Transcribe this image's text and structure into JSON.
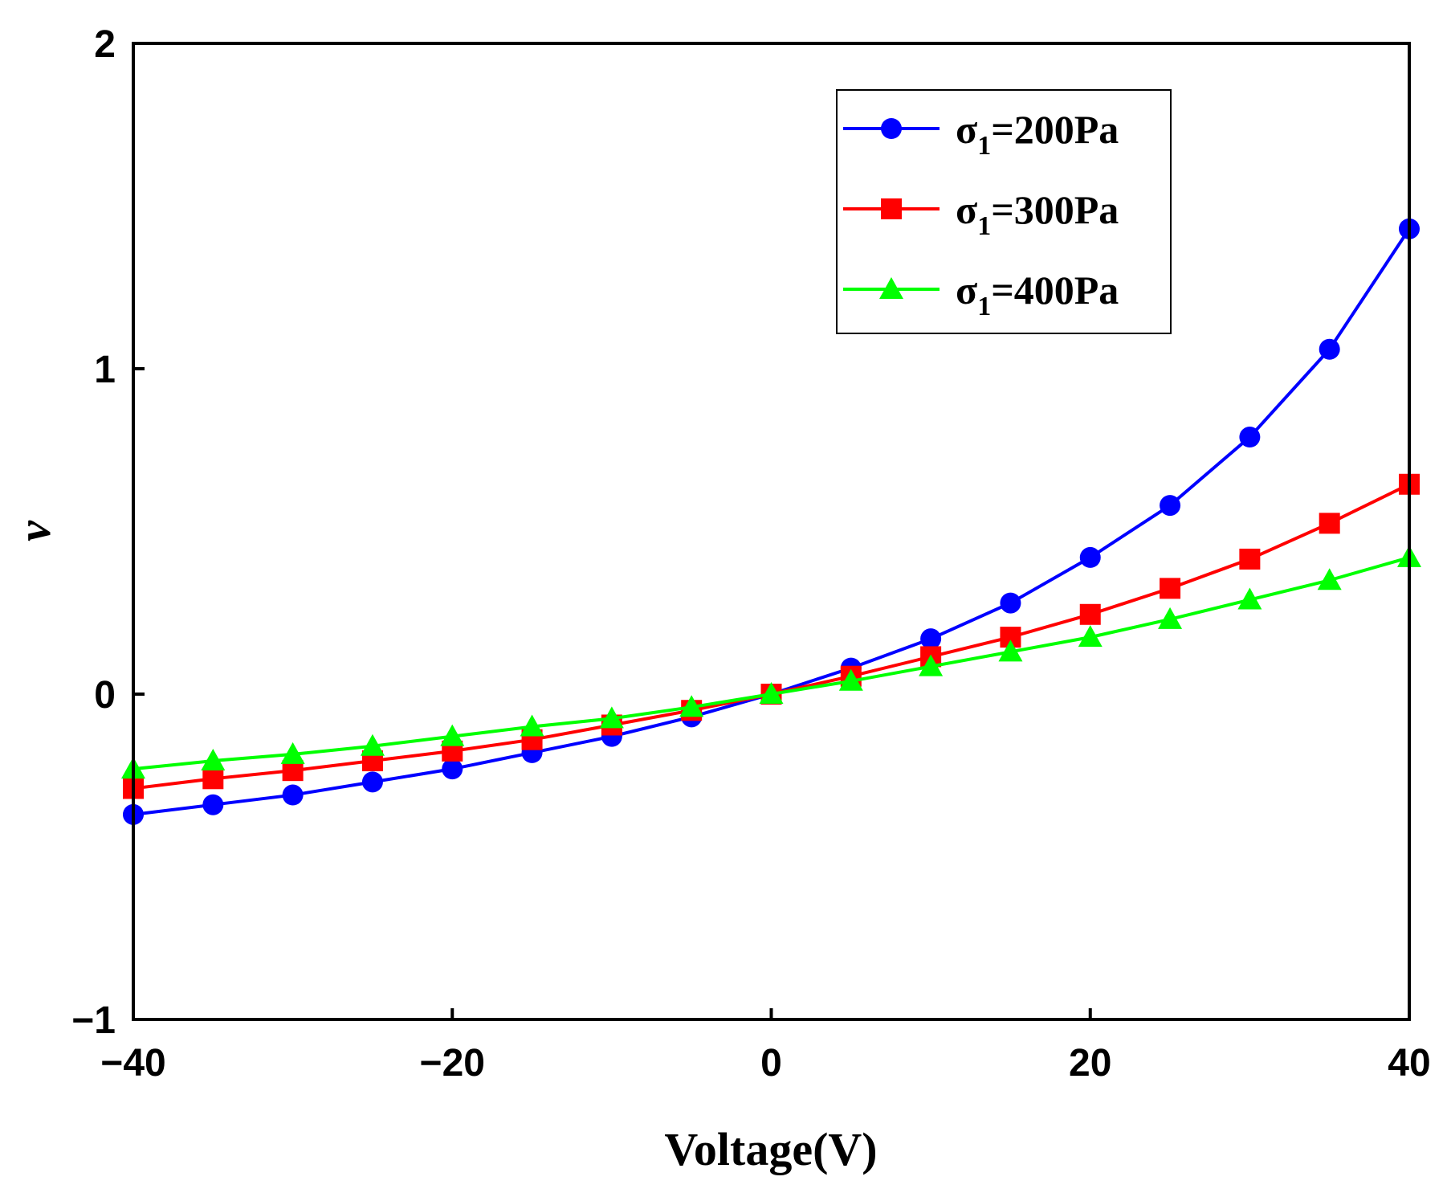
{
  "chart_data": {
    "type": "line",
    "title": "",
    "xlabel": "Voltage(V)",
    "ylabel": "v",
    "xlim": [
      -40,
      40
    ],
    "ylim": [
      -1,
      2
    ],
    "xticks": [
      -40,
      -20,
      0,
      20,
      40
    ],
    "xtick_labels": [
      "−40",
      "−20",
      "0",
      "20",
      "40"
    ],
    "yticks": [
      -1,
      0,
      1,
      2
    ],
    "ytick_labels": [
      "−1",
      "0",
      "1",
      "2"
    ],
    "grid": false,
    "legend_position": "top-right",
    "x": [
      -40,
      -35,
      -30,
      -25,
      -20,
      -15,
      -10,
      -5,
      0,
      5,
      10,
      15,
      20,
      25,
      30,
      35,
      40
    ],
    "series": [
      {
        "name": "σ₁=200Pa",
        "legend_main": "σ",
        "legend_sub": "1",
        "legend_rest": "=200Pa",
        "color": "#0000ff",
        "marker": "circle",
        "values": [
          -0.37,
          -0.34,
          -0.31,
          -0.27,
          -0.23,
          -0.18,
          -0.13,
          -0.07,
          0.0,
          0.08,
          0.17,
          0.28,
          0.42,
          0.58,
          0.79,
          1.06,
          1.43
        ]
      },
      {
        "name": "σ₁=300Pa",
        "legend_main": "σ",
        "legend_sub": "1",
        "legend_rest": "=300Pa",
        "color": "#ff0000",
        "marker": "square",
        "values": [
          -0.29,
          -0.26,
          -0.235,
          -0.205,
          -0.175,
          -0.14,
          -0.095,
          -0.05,
          0.0,
          0.055,
          0.115,
          0.175,
          0.245,
          0.325,
          0.415,
          0.525,
          0.645
        ]
      },
      {
        "name": "σ₁=400Pa",
        "legend_main": "σ",
        "legend_sub": "1",
        "legend_rest": "=400Pa",
        "color": "#00ff00",
        "marker": "triangle",
        "values": [
          -0.23,
          -0.205,
          -0.185,
          -0.16,
          -0.13,
          -0.1,
          -0.075,
          -0.04,
          0.0,
          0.04,
          0.085,
          0.13,
          0.175,
          0.23,
          0.29,
          0.35,
          0.42
        ]
      }
    ]
  }
}
